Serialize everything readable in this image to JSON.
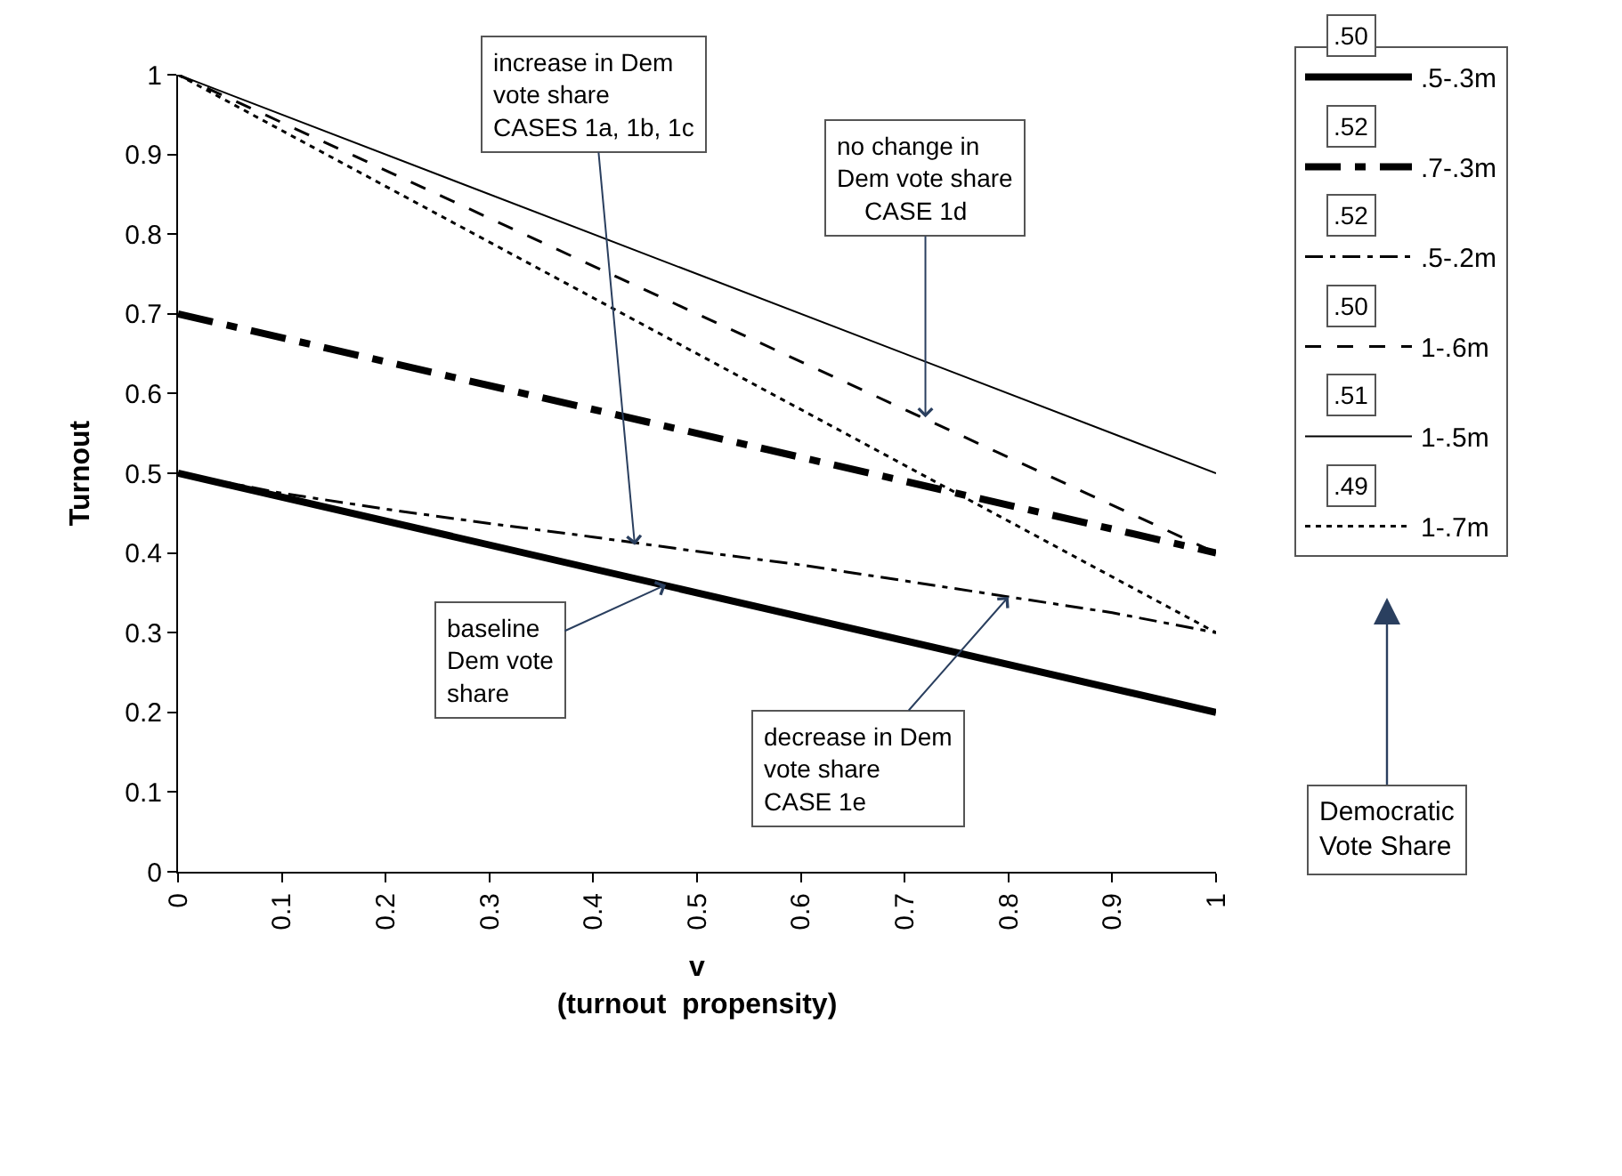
{
  "chart_data": {
    "type": "line",
    "xlabel": "v\n(turnout  propensity)",
    "ylabel": "Turnout",
    "xlim": [
      0,
      1
    ],
    "ylim": [
      0,
      1
    ],
    "xticks": [
      0,
      0.1,
      0.2,
      0.3,
      0.4,
      0.5,
      0.6,
      0.7,
      0.8,
      0.9,
      1
    ],
    "yticks": [
      0,
      0.1,
      0.2,
      0.3,
      0.4,
      0.5,
      0.6,
      0.7,
      0.8,
      0.9,
      1
    ],
    "legend": "right",
    "series": [
      {
        "name": ".5-.3m",
        "color": "#000000",
        "line_style": "solid",
        "x": [
          0,
          1
        ],
        "values": [
          0.5,
          0.2
        ]
      },
      {
        "name": ".7-.3m",
        "color": "#000000",
        "line_style": "dashed",
        "x": [
          0,
          1
        ],
        "values": [
          0.7,
          0.4
        ]
      },
      {
        "name": ".5-.2m",
        "color": "#000000",
        "line_style": "dashed",
        "x": [
          0,
          0.1,
          0.2,
          0.3,
          0.4,
          0.5,
          0.6,
          0.7,
          0.8,
          0.9,
          1
        ],
        "values": [
          0.5,
          0.475,
          0.455,
          0.437,
          0.42,
          0.402,
          0.385,
          0.365,
          0.345,
          0.325,
          0.3
        ]
      },
      {
        "name": "1-.6m",
        "color": "#000000",
        "line_style": "dashed",
        "x": [
          0,
          1
        ],
        "values": [
          1,
          0.4
        ]
      },
      {
        "name": "1-.5m",
        "color": "#000000",
        "line_style": "solid",
        "x": [
          0,
          1
        ],
        "values": [
          1,
          0.5
        ]
      },
      {
        "name": "1-.7m",
        "color": "#000000",
        "line_style": "dotted",
        "x": [
          0,
          1
        ],
        "values": [
          1,
          0.3
        ]
      }
    ],
    "annotations": [
      ".50",
      ".52",
      ".52",
      ".50",
      ".51",
      ".49",
      "Democratic\nVote Share",
      {
        "text": "increase in Dem\nvote share\nCASES 1a, 1b, 1c",
        "x": 0.44,
        "y": 0.41
      },
      {
        "text": "no change in\nDem vote share\n    CASE 1d",
        "x": 0.72,
        "y": 0.57
      },
      {
        "text": "baseline\nDem vote\nshare",
        "x": 0.47,
        "y": 0.36
      },
      {
        "text": "decrease in Dem\nvote share\nCASE 1e",
        "x": 0.8,
        "y": 0.345
      }
    ]
  }
}
